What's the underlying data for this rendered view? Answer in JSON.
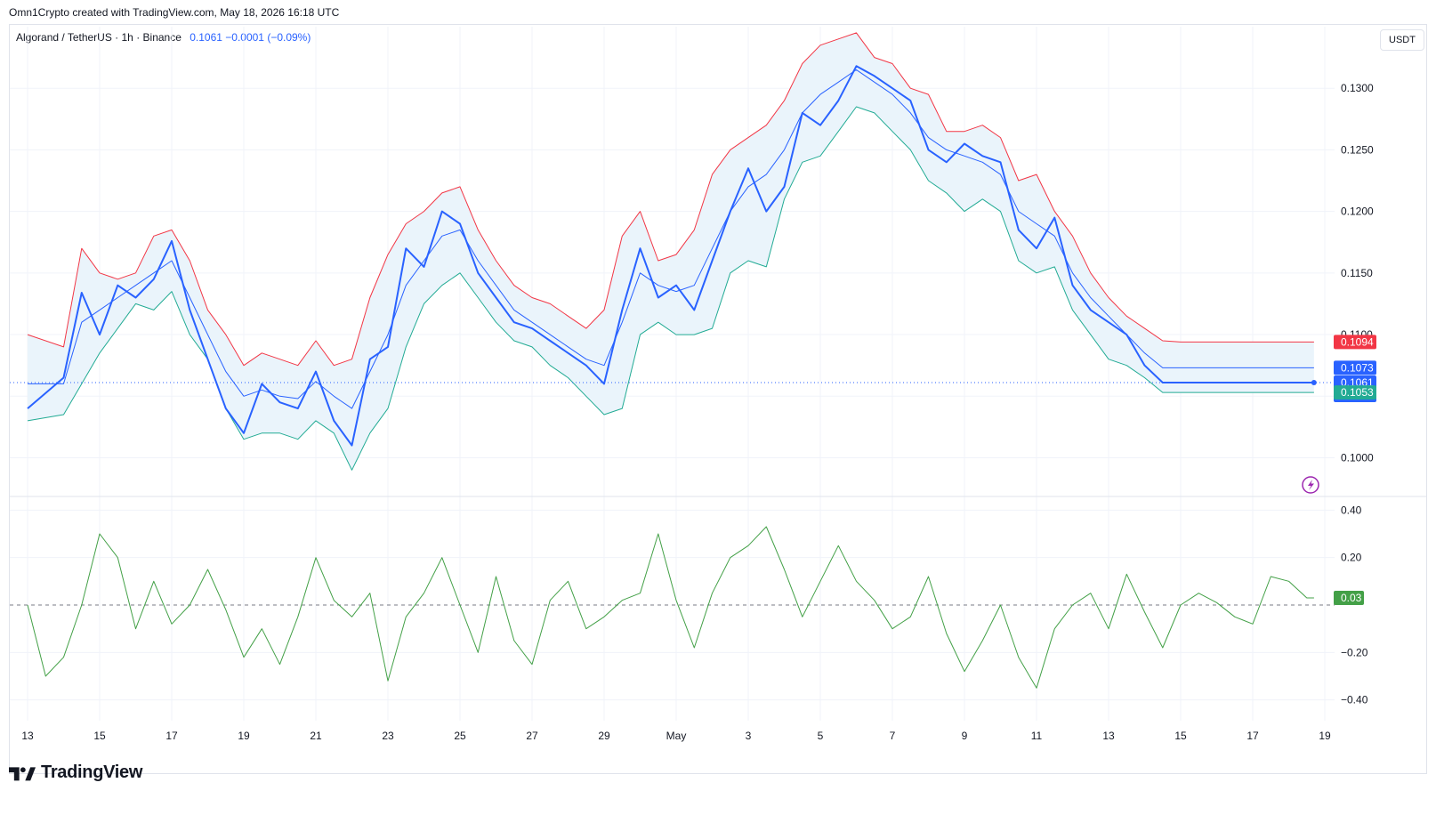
{
  "attribution": "Omn1Crypto created with TradingView.com, May 18, 2026 16:18 UTC",
  "legend": {
    "symbol": "Algorand / TetherUS · 1h · Binance",
    "values": "0.1061  −0.0001 (−0.09%)"
  },
  "currency": "USDT",
  "brand": {
    "name": "TradingView",
    "icon": "tradingview-logo-icon"
  },
  "alert_icon": "lightning-icon",
  "colors": {
    "price": "#2962ff",
    "upper": "#f23645",
    "lower": "#22ab94",
    "basis": "#2962ff",
    "band_fill": "#eaf4fb",
    "oscillator": "#43a047",
    "grid": "#f0f3fa"
  },
  "chart_data": [
    {
      "type": "line",
      "name": "price",
      "ylim": [
        0.097,
        0.135
      ],
      "yticks": [
        "0.1000",
        "0.1050",
        "0.1100",
        "0.1150",
        "0.1200",
        "0.1250",
        "0.1300"
      ],
      "xticks": [
        "13",
        "15",
        "17",
        "19",
        "21",
        "23",
        "25",
        "27",
        "29",
        "May",
        "3",
        "5",
        "7",
        "9",
        "11",
        "13",
        "15",
        "17",
        "19"
      ],
      "x_days": [
        0,
        1,
        1.5,
        2,
        2.5,
        3,
        3.5,
        4,
        4.5,
        5,
        5.5,
        6,
        6.5,
        7,
        7.5,
        8,
        8.5,
        9,
        9.5,
        10,
        10.5,
        11,
        11.5,
        12,
        12.5,
        13,
        13.5,
        14,
        14.5,
        15,
        15.5,
        16,
        16.5,
        17,
        17.5,
        18,
        18.5,
        19,
        19.5,
        20,
        20.5,
        21,
        21.5,
        22,
        22.5,
        23,
        23.5,
        24,
        24.5,
        25,
        25.5,
        26,
        26.5,
        27,
        27.5,
        28,
        28.5,
        29,
        29.5,
        30,
        30.5,
        31,
        31.5,
        32,
        32.5,
        33,
        33.5,
        34,
        34.5,
        35,
        35.5,
        35.7
      ],
      "series": [
        {
          "name": "price",
          "values": [
            0.104,
            0.1065,
            0.1134,
            0.11,
            0.114,
            0.113,
            0.1145,
            0.1176,
            0.112,
            0.108,
            0.104,
            0.102,
            0.106,
            0.1045,
            0.104,
            0.107,
            0.103,
            0.101,
            0.108,
            0.109,
            0.117,
            0.1155,
            0.12,
            0.119,
            0.115,
            0.113,
            0.111,
            0.1105,
            0.1095,
            0.1085,
            0.1075,
            0.106,
            0.112,
            0.117,
            0.113,
            0.114,
            0.112,
            0.116,
            0.12,
            0.1235,
            0.12,
            0.122,
            0.128,
            0.127,
            0.129,
            0.1318,
            0.131,
            0.13,
            0.129,
            0.125,
            0.124,
            0.1255,
            0.1245,
            0.124,
            0.1185,
            0.117,
            0.1195,
            0.114,
            0.112,
            0.111,
            0.11,
            0.1075,
            0.1061,
            0.1061,
            0.1061,
            0.1061,
            0.1061,
            0.1061,
            0.1061,
            0.1061,
            0.1061,
            0.1061
          ]
        },
        {
          "name": "upper",
          "values": [
            0.11,
            0.109,
            0.117,
            0.115,
            0.1145,
            0.115,
            0.118,
            0.1185,
            0.116,
            0.112,
            0.11,
            0.1075,
            0.1085,
            0.108,
            0.1075,
            0.1095,
            0.1075,
            0.108,
            0.113,
            0.1165,
            0.119,
            0.12,
            0.1215,
            0.122,
            0.1185,
            0.116,
            0.114,
            0.113,
            0.1125,
            0.1115,
            0.1105,
            0.112,
            0.118,
            0.12,
            0.116,
            0.1165,
            0.1185,
            0.123,
            0.125,
            0.126,
            0.127,
            0.129,
            0.132,
            0.1335,
            0.134,
            0.1345,
            0.1325,
            0.132,
            0.13,
            0.1295,
            0.1265,
            0.1265,
            0.127,
            0.126,
            0.1225,
            0.123,
            0.12,
            0.118,
            0.115,
            0.113,
            0.1115,
            0.1105,
            0.1095,
            0.1094,
            0.1094,
            0.1094,
            0.1094,
            0.1094,
            0.1094,
            0.1094,
            0.1094,
            0.1094
          ]
        },
        {
          "name": "basis",
          "values": [
            0.106,
            0.106,
            0.111,
            0.112,
            0.113,
            0.114,
            0.115,
            0.116,
            0.113,
            0.11,
            0.107,
            0.105,
            0.1055,
            0.105,
            0.1048,
            0.1062,
            0.105,
            0.104,
            0.107,
            0.11,
            0.114,
            0.116,
            0.118,
            0.1185,
            0.116,
            0.114,
            0.112,
            0.111,
            0.11,
            0.109,
            0.108,
            0.1075,
            0.111,
            0.115,
            0.114,
            0.1135,
            0.114,
            0.117,
            0.12,
            0.122,
            0.123,
            0.125,
            0.128,
            0.1295,
            0.1305,
            0.1315,
            0.1305,
            0.1295,
            0.128,
            0.126,
            0.125,
            0.1245,
            0.124,
            0.123,
            0.12,
            0.119,
            0.118,
            0.115,
            0.113,
            0.1115,
            0.11,
            0.1085,
            0.1073,
            0.1073,
            0.1073,
            0.1073,
            0.1073,
            0.1073,
            0.1073,
            0.1073,
            0.1073,
            0.1073
          ]
        },
        {
          "name": "lower",
          "values": [
            0.103,
            0.1035,
            0.106,
            0.1085,
            0.1105,
            0.1125,
            0.112,
            0.1135,
            0.11,
            0.108,
            0.104,
            0.1015,
            0.102,
            0.102,
            0.1015,
            0.103,
            0.102,
            0.099,
            0.102,
            0.104,
            0.109,
            0.1125,
            0.114,
            0.115,
            0.113,
            0.111,
            0.1095,
            0.109,
            0.1075,
            0.1065,
            0.105,
            0.1035,
            0.104,
            0.11,
            0.111,
            0.11,
            0.11,
            0.1105,
            0.115,
            0.116,
            0.1155,
            0.121,
            0.124,
            0.1245,
            0.1265,
            0.1285,
            0.128,
            0.1265,
            0.125,
            0.1225,
            0.1215,
            0.12,
            0.121,
            0.12,
            0.116,
            0.115,
            0.1155,
            0.112,
            0.11,
            0.108,
            0.1075,
            0.1065,
            0.1053,
            0.1053,
            0.1053,
            0.1053,
            0.1053,
            0.1053,
            0.1053,
            0.1053,
            0.1053,
            0.1053
          ]
        }
      ],
      "last_labels": {
        "upper": "0.1094",
        "basis": "0.1073",
        "price": "0.1061",
        "countdown": "41:33",
        "lower": "0.1053"
      }
    },
    {
      "type": "line",
      "name": "oscillator",
      "ylim": [
        -0.45,
        0.45
      ],
      "yticks": [
        "0.40",
        "0.20",
        "−0.20",
        "−0.40"
      ],
      "x_days": [
        0,
        0.5,
        1,
        1.5,
        2,
        2.5,
        3,
        3.5,
        4,
        4.5,
        5,
        5.5,
        6,
        6.5,
        7,
        7.5,
        8,
        8.5,
        9,
        9.5,
        10,
        10.5,
        11,
        11.5,
        12,
        12.5,
        13,
        13.5,
        14,
        14.5,
        15,
        15.5,
        16,
        16.5,
        17,
        17.5,
        18,
        18.5,
        19,
        19.5,
        20,
        20.5,
        21,
        21.5,
        22,
        22.5,
        23,
        23.5,
        24,
        24.5,
        25,
        25.5,
        26,
        26.5,
        27,
        27.5,
        28,
        28.5,
        29,
        29.5,
        30,
        30.5,
        31,
        31.5,
        32,
        32.5,
        33,
        33.5,
        34,
        34.5,
        35,
        35.5,
        35.7
      ],
      "values": [
        0.0,
        -0.3,
        -0.22,
        0.0,
        0.3,
        0.2,
        -0.1,
        0.1,
        -0.08,
        0.0,
        0.15,
        -0.02,
        -0.22,
        -0.1,
        -0.25,
        -0.05,
        0.2,
        0.02,
        -0.05,
        0.05,
        -0.32,
        -0.05,
        0.05,
        0.2,
        0.0,
        -0.2,
        0.12,
        -0.15,
        -0.25,
        0.02,
        0.1,
        -0.1,
        -0.05,
        0.02,
        0.05,
        0.3,
        0.02,
        -0.18,
        0.05,
        0.2,
        0.25,
        0.33,
        0.15,
        -0.05,
        0.1,
        0.25,
        0.1,
        0.02,
        -0.1,
        -0.05,
        0.12,
        -0.12,
        -0.28,
        -0.15,
        0.0,
        -0.22,
        -0.35,
        -0.1,
        0.0,
        0.05,
        -0.1,
        0.13,
        -0.03,
        -0.18,
        0.0,
        0.05,
        0.01,
        -0.05,
        -0.08,
        0.12,
        0.1,
        0.03,
        0.03
      ],
      "last_label": "0.03"
    }
  ]
}
